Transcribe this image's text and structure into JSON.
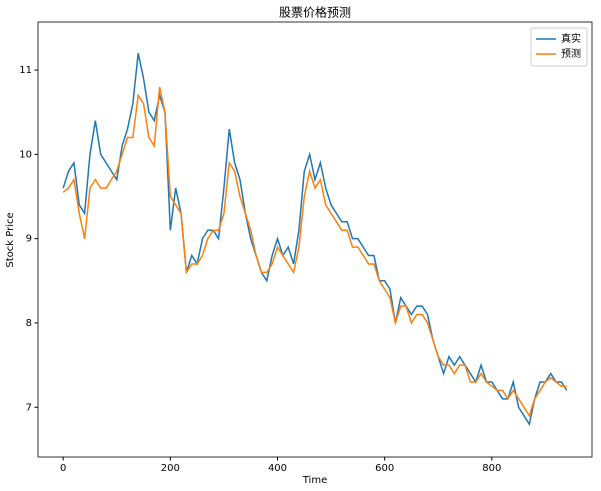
{
  "chart_data": {
    "type": "line",
    "title": "股票价格预测",
    "x_label": "Time",
    "y_label": "Stock Price",
    "x": [
      0,
      10,
      20,
      30,
      40,
      50,
      60,
      70,
      80,
      90,
      100,
      110,
      120,
      130,
      140,
      150,
      160,
      170,
      180,
      190,
      200,
      210,
      220,
      230,
      240,
      250,
      260,
      270,
      280,
      290,
      300,
      310,
      320,
      330,
      340,
      350,
      360,
      370,
      380,
      390,
      400,
      410,
      420,
      430,
      440,
      450,
      460,
      470,
      480,
      490,
      500,
      510,
      520,
      530,
      540,
      550,
      560,
      570,
      580,
      590,
      600,
      610,
      620,
      630,
      640,
      650,
      660,
      670,
      680,
      690,
      700,
      710,
      720,
      730,
      740,
      750,
      760,
      770,
      780,
      790,
      800,
      810,
      820,
      830,
      840,
      850,
      860,
      870,
      880,
      890,
      900,
      910,
      920,
      930,
      940
    ],
    "series": [
      {
        "name": "真实",
        "color": "#1f77b4",
        "values": [
          9.6,
          9.8,
          9.9,
          9.4,
          9.3,
          10.0,
          10.4,
          10.0,
          9.9,
          9.8,
          9.7,
          10.1,
          10.3,
          10.6,
          11.2,
          10.9,
          10.5,
          10.4,
          10.7,
          10.5,
          9.1,
          9.6,
          9.3,
          8.6,
          8.8,
          8.7,
          9.0,
          9.1,
          9.1,
          9.0,
          9.6,
          10.3,
          9.9,
          9.7,
          9.3,
          9.0,
          8.8,
          8.6,
          8.5,
          8.8,
          9.0,
          8.8,
          8.9,
          8.7,
          9.1,
          9.8,
          10.0,
          9.7,
          9.9,
          9.6,
          9.4,
          9.3,
          9.2,
          9.2,
          9.0,
          9.0,
          8.9,
          8.8,
          8.8,
          8.5,
          8.5,
          8.4,
          8.0,
          8.3,
          8.2,
          8.1,
          8.2,
          8.2,
          8.1,
          7.8,
          7.6,
          7.4,
          7.6,
          7.5,
          7.6,
          7.5,
          7.4,
          7.3,
          7.5,
          7.3,
          7.3,
          7.2,
          7.1,
          7.1,
          7.3,
          7.0,
          6.9,
          6.8,
          7.1,
          7.3,
          7.3,
          7.4,
          7.3,
          7.3,
          7.2
        ]
      },
      {
        "name": "预测",
        "color": "#ff7f0e",
        "values": [
          9.55,
          9.6,
          9.7,
          9.3,
          9.0,
          9.6,
          9.7,
          9.6,
          9.6,
          9.7,
          9.8,
          10.0,
          10.2,
          10.2,
          10.7,
          10.6,
          10.2,
          10.1,
          10.8,
          10.5,
          9.5,
          9.4,
          9.3,
          8.6,
          8.7,
          8.7,
          8.8,
          9.0,
          9.1,
          9.1,
          9.3,
          9.9,
          9.8,
          9.5,
          9.3,
          9.1,
          8.8,
          8.6,
          8.6,
          8.7,
          8.9,
          8.8,
          8.7,
          8.6,
          8.9,
          9.5,
          9.8,
          9.6,
          9.7,
          9.4,
          9.3,
          9.2,
          9.1,
          9.1,
          8.9,
          8.9,
          8.8,
          8.7,
          8.7,
          8.5,
          8.4,
          8.3,
          8.0,
          8.2,
          8.2,
          8.0,
          8.1,
          8.1,
          8.0,
          7.8,
          7.6,
          7.5,
          7.5,
          7.4,
          7.5,
          7.5,
          7.3,
          7.3,
          7.4,
          7.3,
          7.25,
          7.2,
          7.2,
          7.1,
          7.2,
          7.1,
          7.0,
          6.9,
          7.1,
          7.2,
          7.3,
          7.35,
          7.3,
          7.25,
          7.25
        ]
      }
    ],
    "xlim": [
      -47,
      987
    ],
    "ylim": [
      6.41,
      11.57
    ],
    "xticks": [
      0,
      200,
      400,
      600,
      800
    ],
    "yticks": [
      7,
      8,
      9,
      10,
      11
    ],
    "legend": "upper right"
  }
}
